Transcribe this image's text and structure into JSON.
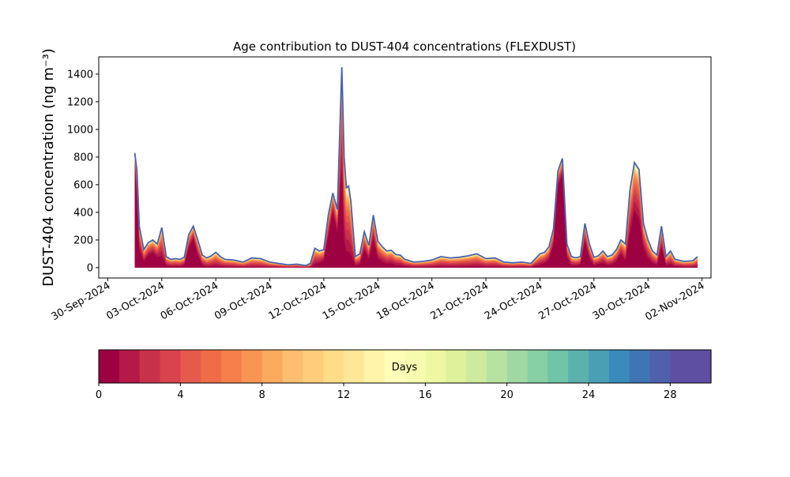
{
  "chart_data": {
    "type": "area",
    "title": "Age contribution to DUST-404 concentrations (FLEXDUST)",
    "ylabel": "DUST-404 concentration (ng m⁻³)",
    "xlabel": "",
    "ylim": [
      -75,
      1525
    ],
    "xlim": [
      "2024-09-30",
      "2024-11-02"
    ],
    "yticks": [
      0,
      200,
      400,
      600,
      800,
      1000,
      1200,
      1400
    ],
    "xticks": [
      "30-Sep-2024",
      "03-Oct-2024",
      "06-Oct-2024",
      "09-Oct-2024",
      "12-Oct-2024",
      "15-Oct-2024",
      "18-Oct-2024",
      "21-Oct-2024",
      "24-Oct-2024",
      "27-Oct-2024",
      "30-Oct-2024",
      "02-Nov-2024"
    ],
    "x": [
      "2024-10-01 12:00",
      "2024-10-01 15:00",
      "2024-10-01 18:00",
      "2024-10-02 00:00",
      "2024-10-02 06:00",
      "2024-10-02 12:00",
      "2024-10-02 18:00",
      "2024-10-03 00:00",
      "2024-10-03 06:00",
      "2024-10-03 12:00",
      "2024-10-03 18:00",
      "2024-10-04 00:00",
      "2024-10-04 06:00",
      "2024-10-04 12:00",
      "2024-10-04 18:00",
      "2024-10-05 00:00",
      "2024-10-05 06:00",
      "2024-10-05 12:00",
      "2024-10-05 18:00",
      "2024-10-06 00:00",
      "2024-10-06 06:00",
      "2024-10-06 12:00",
      "2024-10-07 00:00",
      "2024-10-07 12:00",
      "2024-10-08 00:00",
      "2024-10-08 12:00",
      "2024-10-09 00:00",
      "2024-10-09 12:00",
      "2024-10-10 00:00",
      "2024-10-10 12:00",
      "2024-10-11 00:00",
      "2024-10-11 06:00",
      "2024-10-11 12:00",
      "2024-10-11 18:00",
      "2024-10-12 00:00",
      "2024-10-12 06:00",
      "2024-10-12 12:00",
      "2024-10-12 18:00",
      "2024-10-13 00:00",
      "2024-10-13 03:00",
      "2024-10-13 06:00",
      "2024-10-13 09:00",
      "2024-10-13 12:00",
      "2024-10-13 18:00",
      "2024-10-14 00:00",
      "2024-10-14 06:00",
      "2024-10-14 12:00",
      "2024-10-14 18:00",
      "2024-10-15 00:00",
      "2024-10-15 06:00",
      "2024-10-15 12:00",
      "2024-10-15 18:00",
      "2024-10-16 00:00",
      "2024-10-16 06:00",
      "2024-10-16 12:00",
      "2024-10-17 00:00",
      "2024-10-17 12:00",
      "2024-10-18 00:00",
      "2024-10-18 12:00",
      "2024-10-19 00:00",
      "2024-10-19 12:00",
      "2024-10-20 00:00",
      "2024-10-20 12:00",
      "2024-10-21 00:00",
      "2024-10-21 12:00",
      "2024-10-22 00:00",
      "2024-10-22 12:00",
      "2024-10-23 00:00",
      "2024-10-23 12:00",
      "2024-10-24 00:00",
      "2024-10-24 06:00",
      "2024-10-24 12:00",
      "2024-10-24 18:00",
      "2024-10-25 00:00",
      "2024-10-25 06:00",
      "2024-10-25 12:00",
      "2024-10-25 18:00",
      "2024-10-26 00:00",
      "2024-10-26 06:00",
      "2024-10-26 12:00",
      "2024-10-26 18:00",
      "2024-10-27 00:00",
      "2024-10-27 06:00",
      "2024-10-27 12:00",
      "2024-10-27 18:00",
      "2024-10-28 00:00",
      "2024-10-28 06:00",
      "2024-10-28 12:00",
      "2024-10-28 18:00",
      "2024-10-29 00:00",
      "2024-10-29 06:00",
      "2024-10-29 12:00",
      "2024-10-29 18:00",
      "2024-10-30 00:00",
      "2024-10-30 06:00",
      "2024-10-30 12:00",
      "2024-10-30 18:00",
      "2024-10-31 00:00",
      "2024-10-31 06:00",
      "2024-10-31 12:00",
      "2024-11-01 00:00",
      "2024-11-01 12:00",
      "2024-11-01 18:00"
    ],
    "total": [
      830,
      700,
      300,
      130,
      180,
      200,
      170,
      290,
      80,
      60,
      65,
      60,
      75,
      240,
      300,
      200,
      90,
      70,
      85,
      110,
      80,
      60,
      55,
      40,
      70,
      65,
      40,
      30,
      20,
      25,
      15,
      30,
      140,
      120,
      130,
      380,
      540,
      420,
      1450,
      800,
      580,
      590,
      480,
      80,
      100,
      260,
      160,
      380,
      190,
      150,
      120,
      125,
      95,
      90,
      60,
      40,
      45,
      55,
      80,
      70,
      75,
      85,
      100,
      65,
      70,
      40,
      35,
      40,
      30,
      100,
      110,
      150,
      280,
      700,
      790,
      170,
      80,
      70,
      80,
      320,
      170,
      75,
      85,
      120,
      80,
      90,
      130,
      200,
      170,
      560,
      760,
      710,
      320,
      200,
      120,
      90,
      300,
      80,
      120,
      60,
      45,
      50,
      80
    ],
    "fresh_fraction": [
      0.9,
      0.7,
      0.45,
      0.35,
      0.5,
      0.55,
      0.45,
      0.3,
      0.2,
      0.15,
      0.15,
      0.15,
      0.25,
      0.6,
      0.7,
      0.45,
      0.2,
      0.1,
      0.1,
      0.1,
      0.1,
      0.1,
      0.08,
      0.05,
      0.05,
      0.05,
      0.05,
      0.03,
      0.03,
      0.05,
      0.03,
      0.05,
      0.2,
      0.3,
      0.4,
      0.6,
      0.75,
      0.6,
      0.5,
      0.25,
      0.2,
      0.2,
      0.2,
      0.2,
      0.25,
      0.5,
      0.4,
      0.55,
      0.35,
      0.3,
      0.25,
      0.25,
      0.2,
      0.2,
      0.15,
      0.1,
      0.1,
      0.1,
      0.1,
      0.1,
      0.1,
      0.1,
      0.1,
      0.1,
      0.1,
      0.1,
      0.1,
      0.1,
      0.1,
      0.2,
      0.3,
      0.4,
      0.6,
      0.85,
      0.85,
      0.45,
      0.2,
      0.2,
      0.3,
      0.6,
      0.4,
      0.2,
      0.3,
      0.3,
      0.25,
      0.25,
      0.35,
      0.5,
      0.3,
      0.45,
      0.55,
      0.5,
      0.45,
      0.35,
      0.3,
      0.2,
      0.5,
      0.2,
      0.2,
      0.15,
      0.1,
      0.1,
      0.1
    ],
    "colorbar": {
      "label": "Days",
      "range": [
        0,
        30
      ],
      "ticks": [
        0,
        4,
        8,
        12,
        16,
        20,
        24,
        28
      ],
      "colors": [
        "#9e0142",
        "#b41947",
        "#c8314a",
        "#d8434e",
        "#e55a4a",
        "#ef6c46",
        "#f67f4b",
        "#f89553",
        "#fbaa5e",
        "#fdbf6f",
        "#fdcd7c",
        "#fedc88",
        "#fee898",
        "#fff4a8",
        "#fffeb9",
        "#f7fbb0",
        "#eef8a2",
        "#dff19a",
        "#cdea9e",
        "#b8e2a1",
        "#a0d8a4",
        "#87cfa5",
        "#70c4a7",
        "#5bb1ab",
        "#4b9fb4",
        "#3a8bbc",
        "#3f75b3",
        "#4f61aa",
        "#5e4fa2",
        "#5e4fa2"
      ]
    }
  }
}
